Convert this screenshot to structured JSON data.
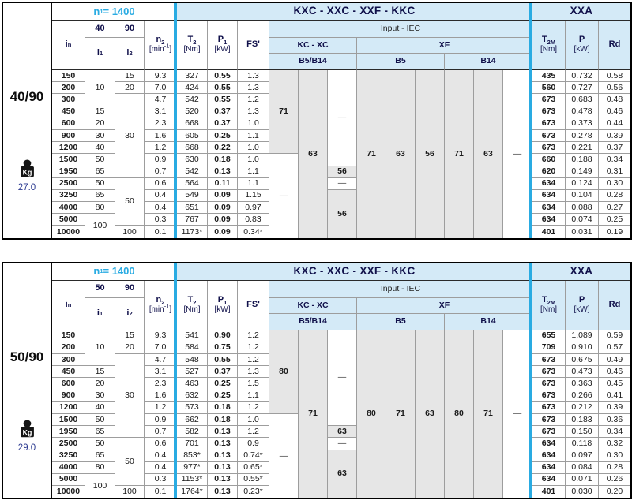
{
  "colors": {
    "accent_cyan": "#29abe2",
    "header_blue_bg": "#d4eaf7",
    "grey_cell_bg": "#e6e6e6",
    "weight_text_blue": "#2b3990",
    "header_text_navy": "#10104a"
  },
  "shared_header": {
    "n1": {
      "t": "n",
      "sub": "1",
      "end": " = 1400"
    },
    "title": "KXC - XXC - XXF - KKC",
    "xxa": "XXA",
    "input_iec": "Input  -  IEC",
    "kc_xc": "KC - XC",
    "xf": "XF",
    "b5b14": "B5/B14",
    "b5": "B5",
    "b14": "B14",
    "in_label": {
      "t": "i",
      "sub": "n"
    },
    "i1_label": {
      "t": "i",
      "sub": "1"
    },
    "i2_label": {
      "t": "i",
      "sub": "2"
    },
    "n2_label": {
      "t": "n",
      "sub": "2"
    },
    "min_unit": {
      "t": "[min",
      "sup": "-1",
      "end": "]"
    },
    "t2_label": {
      "t": "T",
      "sub": "2"
    },
    "nm_unit": "[Nm]",
    "p1_label": {
      "t": "P",
      "sub": "1"
    },
    "kw_unit": "[kW]",
    "fs_label": "FS'",
    "t2m_label": {
      "t": "T",
      "sub": "2M"
    },
    "p_label": "P",
    "rd_label": "Rd",
    "kg_label": "Kg"
  },
  "tables": [
    {
      "group": "40/90",
      "weight": "27.0",
      "ratio_top": "40",
      "ratio_side": "90",
      "rows": [
        {
          "in": "150",
          "n2": "9.3",
          "t2": "327",
          "p1": "0.55",
          "fs": "1.3",
          "t2m": "435",
          "p": "0.732",
          "rd": "0.58"
        },
        {
          "in": "200",
          "n2": "7.0",
          "t2": "424",
          "p1": "0.55",
          "fs": "1.3",
          "t2m": "560",
          "p": "0.727",
          "rd": "0.56"
        },
        {
          "in": "300",
          "n2": "4.7",
          "t2": "542",
          "p1": "0.55",
          "fs": "1.2",
          "t2m": "673",
          "p": "0.683",
          "rd": "0.48"
        },
        {
          "in": "450",
          "n2": "3.1",
          "t2": "520",
          "p1": "0.37",
          "fs": "1.3",
          "t2m": "673",
          "p": "0.478",
          "rd": "0.46"
        },
        {
          "in": "600",
          "n2": "2.3",
          "t2": "668",
          "p1": "0.37",
          "fs": "1.0",
          "t2m": "673",
          "p": "0.373",
          "rd": "0.44"
        },
        {
          "in": "900",
          "n2": "1.6",
          "t2": "605",
          "p1": "0.25",
          "fs": "1.1",
          "t2m": "673",
          "p": "0.278",
          "rd": "0.39"
        },
        {
          "in": "1200",
          "n2": "1.2",
          "t2": "668",
          "p1": "0.22",
          "fs": "1.0",
          "t2m": "673",
          "p": "0.221",
          "rd": "0.37"
        },
        {
          "in": "1500",
          "n2": "0.9",
          "t2": "630",
          "p1": "0.18",
          "fs": "1.0",
          "t2m": "660",
          "p": "0.188",
          "rd": "0.34"
        },
        {
          "in": "1950",
          "n2": "0.7",
          "t2": "542",
          "p1": "0.13",
          "fs": "1.1",
          "t2m": "620",
          "p": "0.149",
          "rd": "0.31"
        },
        {
          "in": "2500",
          "n2": "0.6",
          "t2": "564",
          "p1": "0.11",
          "fs": "1.1",
          "t2m": "634",
          "p": "0.124",
          "rd": "0.30"
        },
        {
          "in": "3250",
          "n2": "0.4",
          "t2": "549",
          "p1": "0.09",
          "fs": "1.15",
          "t2m": "634",
          "p": "0.104",
          "rd": "0.28"
        },
        {
          "in": "4000",
          "n2": "0.4",
          "t2": "651",
          "p1": "0.09",
          "fs": "0.97",
          "t2m": "634",
          "p": "0.088",
          "rd": "0.27"
        },
        {
          "in": "5000",
          "n2": "0.3",
          "t2": "767",
          "p1": "0.09",
          "fs": "0.83",
          "t2m": "634",
          "p": "0.074",
          "rd": "0.25"
        },
        {
          "in": "10000",
          "n2": "0.1",
          "t2": "1173*",
          "p1": "0.09",
          "fs": "0.34*",
          "t2m": "401",
          "p": "0.031",
          "rd": "0.19"
        }
      ],
      "i1_cells": [
        {
          "v": "10",
          "span": 3
        },
        {
          "v": "15",
          "span": 1
        },
        {
          "v": "20",
          "span": 1
        },
        {
          "v": "30",
          "span": 1
        },
        {
          "v": "40",
          "span": 1
        },
        {
          "v": "50",
          "span": 1
        },
        {
          "v": "65",
          "span": 1
        },
        {
          "v": "50",
          "span": 1
        },
        {
          "v": "65",
          "span": 1
        },
        {
          "v": "80",
          "span": 1
        },
        {
          "v": "100",
          "span": 2
        }
      ],
      "i2_cells": [
        {
          "v": "15",
          "span": 1
        },
        {
          "v": "20",
          "span": 1
        },
        {
          "v": "30",
          "span": 7
        },
        {
          "v": "50",
          "span": 4
        },
        {
          "v": "100",
          "span": 1
        }
      ],
      "iec_columns": [
        [
          {
            "v": "71",
            "grey": true,
            "span": 7
          },
          {
            "v": "—",
            "grey": false,
            "span": 7
          }
        ],
        [
          {
            "v": "63",
            "grey": true,
            "span": 14
          }
        ],
        [
          {
            "v": "—",
            "grey": false,
            "span": 8
          },
          {
            "v": "56",
            "grey": true,
            "span": 1
          },
          {
            "v": "—",
            "grey": false,
            "span": 1
          },
          {
            "v": "56",
            "grey": true,
            "span": 4
          }
        ],
        [
          {
            "v": "71",
            "grey": true,
            "span": 14
          }
        ],
        [
          {
            "v": "63",
            "grey": true,
            "span": 14
          }
        ],
        [
          {
            "v": "56",
            "grey": true,
            "span": 14
          }
        ],
        [
          {
            "v": "71",
            "grey": true,
            "span": 14
          }
        ],
        [
          {
            "v": "63",
            "grey": true,
            "span": 14
          }
        ],
        [
          {
            "v": "—",
            "grey": false,
            "span": 14
          }
        ]
      ]
    },
    {
      "group": "50/90",
      "weight": "29.0",
      "ratio_top": "50",
      "ratio_side": "90",
      "rows": [
        {
          "in": "150",
          "n2": "9.3",
          "t2": "541",
          "p1": "0.90",
          "fs": "1.2",
          "t2m": "655",
          "p": "1.089",
          "rd": "0.59"
        },
        {
          "in": "200",
          "n2": "7.0",
          "t2": "584",
          "p1": "0.75",
          "fs": "1.2",
          "t2m": "709",
          "p": "0.910",
          "rd": "0.57"
        },
        {
          "in": "300",
          "n2": "4.7",
          "t2": "548",
          "p1": "0.55",
          "fs": "1.2",
          "t2m": "673",
          "p": "0.675",
          "rd": "0.49"
        },
        {
          "in": "450",
          "n2": "3.1",
          "t2": "527",
          "p1": "0.37",
          "fs": "1.3",
          "t2m": "673",
          "p": "0.473",
          "rd": "0.46"
        },
        {
          "in": "600",
          "n2": "2.3",
          "t2": "463",
          "p1": "0.25",
          "fs": "1.5",
          "t2m": "673",
          "p": "0.363",
          "rd": "0.45"
        },
        {
          "in": "900",
          "n2": "1.6",
          "t2": "632",
          "p1": "0.25",
          "fs": "1.1",
          "t2m": "673",
          "p": "0.266",
          "rd": "0.41"
        },
        {
          "in": "1200",
          "n2": "1.2",
          "t2": "573",
          "p1": "0.18",
          "fs": "1.2",
          "t2m": "673",
          "p": "0.212",
          "rd": "0.39"
        },
        {
          "in": "1500",
          "n2": "0.9",
          "t2": "662",
          "p1": "0.18",
          "fs": "1.0",
          "t2m": "673",
          "p": "0.183",
          "rd": "0.36"
        },
        {
          "in": "1950",
          "n2": "0.7",
          "t2": "582",
          "p1": "0.13",
          "fs": "1.2",
          "t2m": "673",
          "p": "0.150",
          "rd": "0.34"
        },
        {
          "in": "2500",
          "n2": "0.6",
          "t2": "701",
          "p1": "0.13",
          "fs": "0.9",
          "t2m": "634",
          "p": "0.118",
          "rd": "0.32"
        },
        {
          "in": "3250",
          "n2": "0.4",
          "t2": "853*",
          "p1": "0.13",
          "fs": "0.74*",
          "t2m": "634",
          "p": "0.097",
          "rd": "0.30"
        },
        {
          "in": "4000",
          "n2": "0.4",
          "t2": "977*",
          "p1": "0.13",
          "fs": "0.65*",
          "t2m": "634",
          "p": "0.084",
          "rd": "0.28"
        },
        {
          "in": "5000",
          "n2": "0.3",
          "t2": "1153*",
          "p1": "0.13",
          "fs": "0.55*",
          "t2m": "634",
          "p": "0.071",
          "rd": "0.26"
        },
        {
          "in": "10000",
          "n2": "0.1",
          "t2": "1764*",
          "p1": "0.13",
          "fs": "0.23*",
          "t2m": "401",
          "p": "0.030",
          "rd": "0.20"
        }
      ],
      "i1_cells": [
        {
          "v": "10",
          "span": 3
        },
        {
          "v": "15",
          "span": 1
        },
        {
          "v": "20",
          "span": 1
        },
        {
          "v": "30",
          "span": 1
        },
        {
          "v": "40",
          "span": 1
        },
        {
          "v": "50",
          "span": 1
        },
        {
          "v": "65",
          "span": 1
        },
        {
          "v": "50",
          "span": 1
        },
        {
          "v": "65",
          "span": 1
        },
        {
          "v": "80",
          "span": 1
        },
        {
          "v": "100",
          "span": 2
        }
      ],
      "i2_cells": [
        {
          "v": "15",
          "span": 1
        },
        {
          "v": "20",
          "span": 1
        },
        {
          "v": "30",
          "span": 7
        },
        {
          "v": "50",
          "span": 4
        },
        {
          "v": "100",
          "span": 1
        }
      ],
      "iec_columns": [
        [
          {
            "v": "80",
            "grey": true,
            "span": 7
          },
          {
            "v": "—",
            "grey": false,
            "span": 7
          }
        ],
        [
          {
            "v": "71",
            "grey": true,
            "span": 14
          }
        ],
        [
          {
            "v": "—",
            "grey": false,
            "span": 8
          },
          {
            "v": "63",
            "grey": true,
            "span": 1
          },
          {
            "v": "—",
            "grey": false,
            "span": 1
          },
          {
            "v": "63",
            "grey": true,
            "span": 4
          }
        ],
        [
          {
            "v": "80",
            "grey": true,
            "span": 14
          }
        ],
        [
          {
            "v": "71",
            "grey": true,
            "span": 14
          }
        ],
        [
          {
            "v": "63",
            "grey": true,
            "span": 14
          }
        ],
        [
          {
            "v": "80",
            "grey": true,
            "span": 14
          }
        ],
        [
          {
            "v": "71",
            "grey": true,
            "span": 14
          }
        ],
        [
          {
            "v": "—",
            "grey": false,
            "span": 14
          }
        ]
      ]
    }
  ]
}
